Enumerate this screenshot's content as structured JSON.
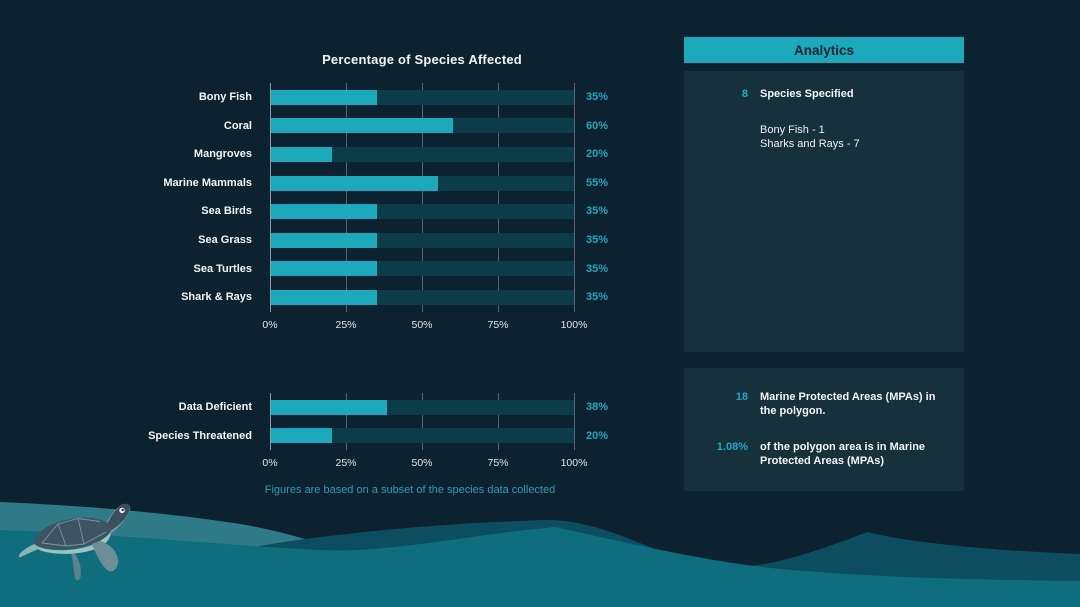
{
  "colors": {
    "accent": "#1CA9BB",
    "page_bg": "#0C2230",
    "panel_bg": "#17313C",
    "bar_track": "#0C3B49",
    "grid_line": "#55666E",
    "axis_line": "#8E9CA1",
    "text_primary": "#F2F6F6",
    "tick_text": "#DDE5E6",
    "footnote_text": "#2B9DB1",
    "header_text": "#0B2430",
    "wave_front": "#0F6E7D",
    "wave_back_dark": "#0C4E5F",
    "wave_back_light": "#2F7A87"
  },
  "chart_data": [
    {
      "type": "bar",
      "orientation": "horizontal",
      "title": "Percentage of Species Affected",
      "categories": [
        "Bony Fish",
        "Coral",
        "Mangroves",
        "Marine Mammals",
        "Sea Birds",
        "Sea Grass",
        "Sea Turtles",
        "Shark & Rays"
      ],
      "values": [
        35,
        60,
        20,
        55,
        35,
        35,
        35,
        35
      ],
      "value_labels": [
        "35%",
        "60%",
        "20%",
        "55%",
        "35%",
        "35%",
        "35%",
        "35%"
      ],
      "xticks": [
        "0%",
        "25%",
        "50%",
        "75%",
        "100%"
      ],
      "xlim": [
        0,
        100
      ],
      "grid": true,
      "legend": "none"
    },
    {
      "type": "bar",
      "orientation": "horizontal",
      "title": "",
      "categories": [
        "Data Deficient",
        "Species Threatened"
      ],
      "values": [
        38,
        20
      ],
      "value_labels": [
        "38%",
        "20%"
      ],
      "xticks": [
        "0%",
        "25%",
        "50%",
        "75%",
        "100%"
      ],
      "xlim": [
        0,
        100
      ],
      "grid": true,
      "legend": "none"
    }
  ],
  "footnote": "Figures are based on a subset of the species data collected",
  "analytics": {
    "title": "Analytics",
    "species_panel": {
      "count": "8",
      "label": "Species Specified",
      "details": [
        "Bony Fish - 1",
        "Sharks and Rays - 7"
      ]
    },
    "mpa_panel": {
      "items": [
        {
          "value": "18",
          "text": "Marine Protected Areas (MPAs) in the polygon."
        },
        {
          "value": "1.08%",
          "text": "of the polygon area is in Marine Protected Areas (MPAs)"
        }
      ]
    }
  },
  "illustration": {
    "name": "sea-turtle swimming over ocean waves"
  }
}
